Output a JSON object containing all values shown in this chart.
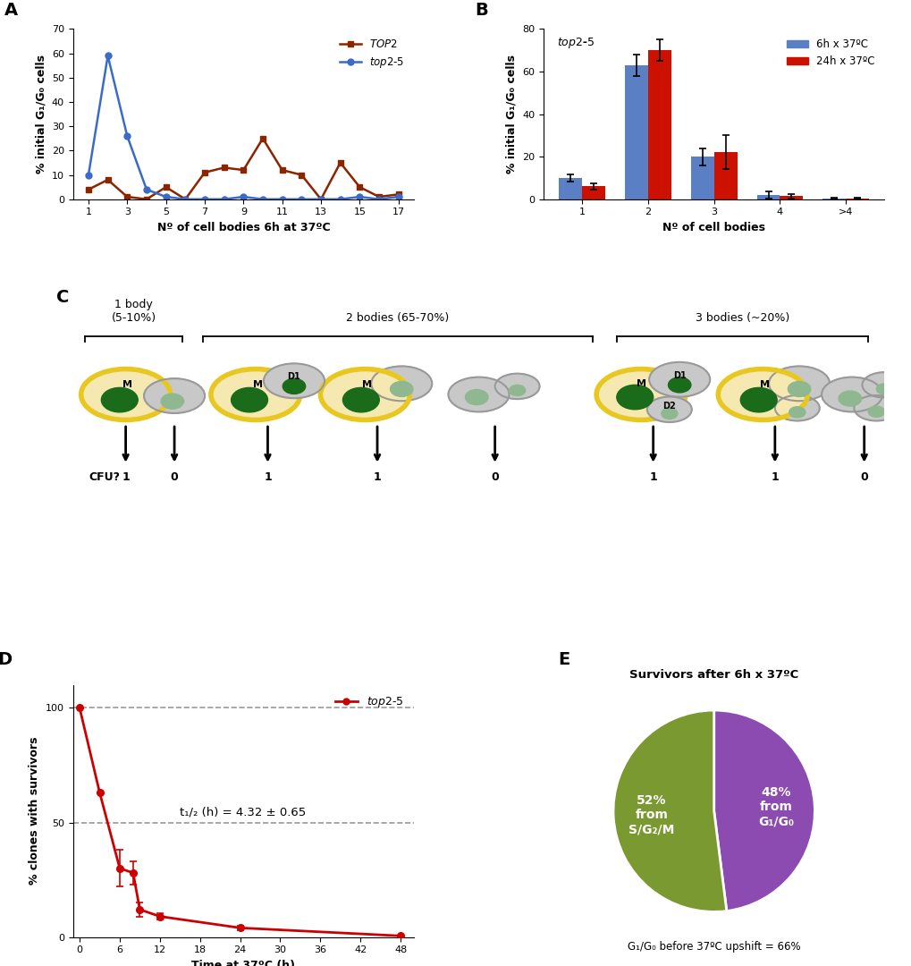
{
  "panel_A": {
    "top2_x": [
      1,
      2,
      3,
      4,
      5,
      6,
      7,
      8,
      9,
      10,
      11,
      12,
      13,
      14,
      15,
      16,
      17
    ],
    "top2_y": [
      4,
      8,
      1,
      0,
      5,
      0,
      11,
      13,
      12,
      25,
      12,
      10,
      0,
      15,
      5,
      1,
      2
    ],
    "top25_x": [
      1,
      2,
      3,
      4,
      5,
      6,
      7,
      8,
      9,
      10,
      11,
      12,
      13,
      14,
      15,
      16,
      17
    ],
    "top25_y": [
      10,
      59,
      26,
      4,
      1,
      0,
      0,
      0,
      1,
      0,
      0,
      0,
      0,
      0,
      1,
      0,
      1
    ],
    "top2_color": "#8B2500",
    "top25_color": "#3A6BC8",
    "ylabel": "% initial G₁/G₀ cells",
    "xlabel": "Nº of cell bodies 6h at 37ºC",
    "ylim": [
      0,
      70
    ],
    "yticks": [
      0,
      10,
      20,
      30,
      40,
      50,
      60,
      70
    ],
    "xticks": [
      1,
      3,
      5,
      7,
      9,
      11,
      13,
      15,
      17
    ]
  },
  "panel_B": {
    "categories": [
      "1",
      "2",
      "3",
      "4",
      ">4"
    ],
    "blue_values": [
      10,
      63,
      20,
      2,
      0.5
    ],
    "red_values": [
      6,
      70,
      22,
      1.5,
      0.5
    ],
    "blue_errors": [
      1.5,
      5,
      4,
      1.5,
      0.2
    ],
    "red_errors": [
      1.5,
      5,
      8,
      1.0,
      0.2
    ],
    "blue_color": "#5B7FC5",
    "red_color": "#CC1100",
    "ylabel": "% initial G₁/G₀ cells",
    "xlabel": "Nº of cell bodies",
    "ylim": [
      0,
      80
    ],
    "yticks": [
      0,
      20,
      40,
      60,
      80
    ],
    "legend_6h": "6h x 37ºC",
    "legend_24h": "24h x 37ºC",
    "title": "top2-5"
  },
  "panel_D": {
    "x": [
      0,
      3,
      6,
      8,
      9,
      12,
      24,
      48
    ],
    "y": [
      100,
      63,
      30,
      28,
      12,
      9,
      4,
      0.5
    ],
    "errors": [
      0,
      0,
      8,
      5,
      3,
      1.5,
      1,
      0.3
    ],
    "color": "#CC0000",
    "ylabel": "% clones with survivors",
    "xlabel": "Time at 37ºC (h)",
    "ylim": [
      0,
      110
    ],
    "yticks": [
      0,
      50,
      100
    ],
    "xticks": [
      0,
      6,
      12,
      18,
      24,
      30,
      36,
      42,
      48
    ],
    "label": "top2-5",
    "annotation": "t₁/₂ (h) = 4.32 ± 0.65"
  },
  "panel_E": {
    "slices": [
      48,
      52
    ],
    "colors": [
      "#8B4BB0",
      "#7A9930"
    ],
    "labels_inside": [
      "48%\nfrom\nG₁/G₀",
      "52%\nfrom\nS/G₂/M"
    ],
    "title": "Survivors after 6h x 37ºC",
    "subtitle": "G₁/G₀ before 37ºC upshift = 66%"
  },
  "background_color": "#ffffff",
  "cell_colors": {
    "viable_fill": "#F5E8B0",
    "viable_edge": "#E8C820",
    "viable_nucleus": "#1A6B1A",
    "inviable_fill": "#C8C8C8",
    "inviable_edge": "#999999",
    "inviable_nucleus": "#90B890"
  }
}
